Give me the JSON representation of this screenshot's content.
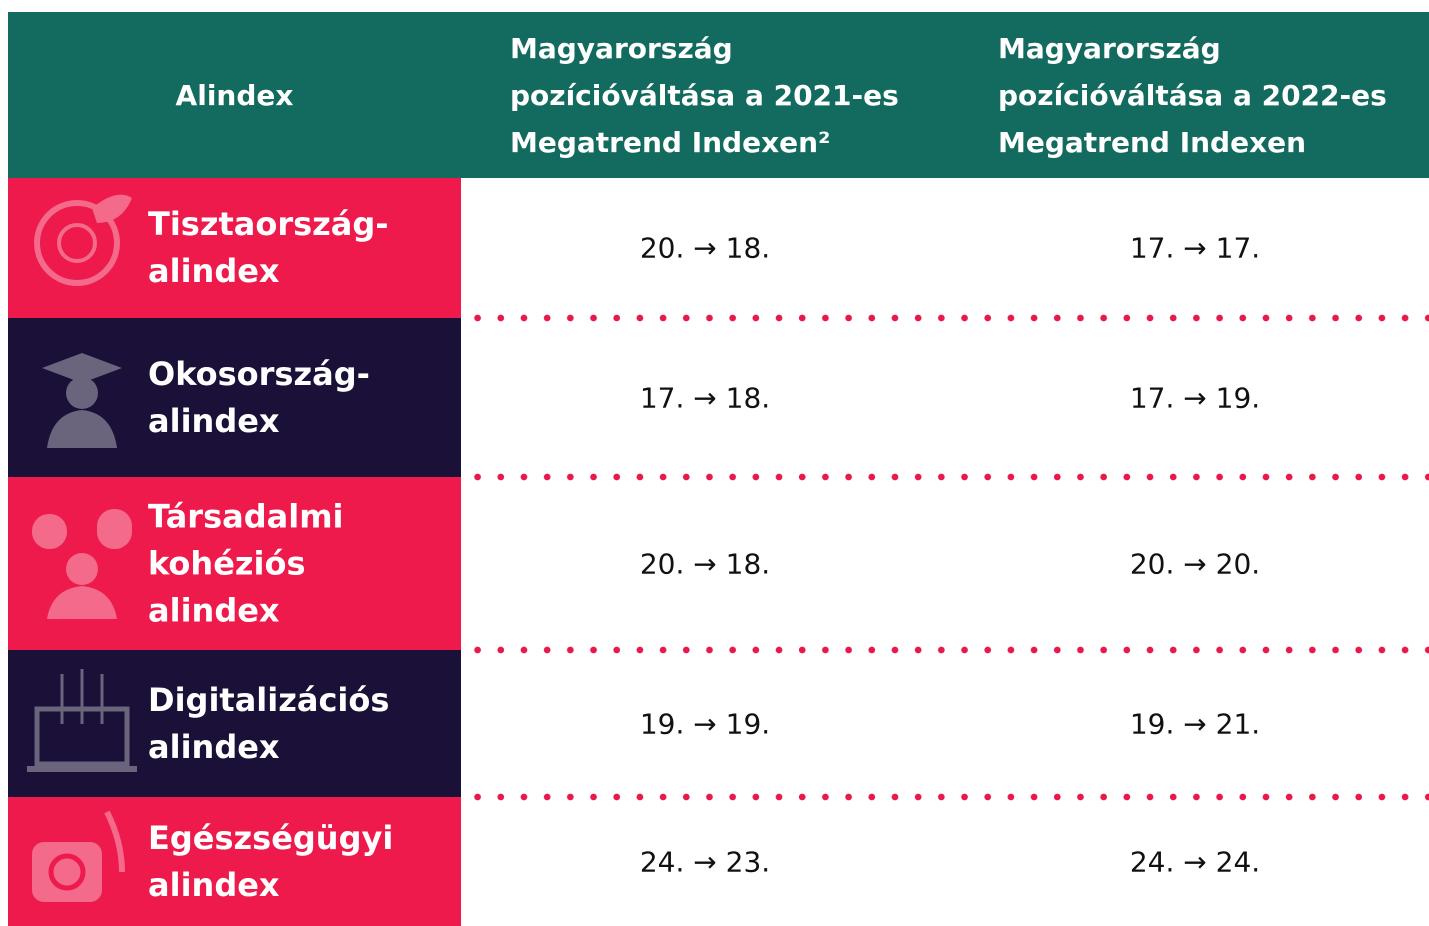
{
  "table": {
    "header": [
      "Alindex",
      "Magyarország pozícióváltása a 2021-es Megatrend Indexen²",
      "Magyarország pozícióváltása a 2022-es Megatrend Indexen"
    ],
    "rows": [
      [
        "Tisztaország-alindex",
        "20. → 18.",
        "17. → 17."
      ],
      [
        "Okosország-alindex",
        "17. → 18.",
        "17. → 19."
      ],
      [
        "Társadalmi kohéziós alindex",
        "20. → 18.",
        "20. → 20."
      ],
      [
        "Digitalizációs alindex",
        "19. → 19.",
        "19. → 21."
      ],
      [
        "Egészségügyi alindex",
        "24. → 23.",
        "24. → 24."
      ]
    ]
  }
}
